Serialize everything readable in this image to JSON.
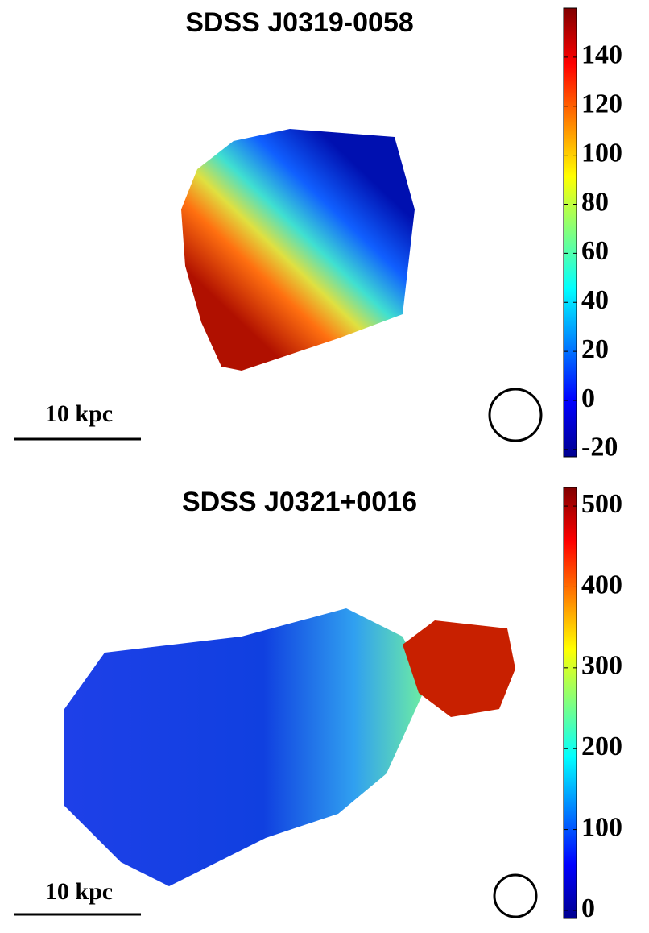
{
  "chart_data": [
    {
      "type": "colormap",
      "title": "SDSS J0319-0058",
      "colormap": "jet",
      "clim": [
        -23,
        160
      ],
      "cticks": [
        -20,
        0,
        20,
        40,
        60,
        80,
        100,
        120,
        140
      ],
      "scale_label": "10 kpc"
    },
    {
      "type": "colormap",
      "title": "SDSS J0321+0016",
      "colormap": "jet",
      "clim": [
        -10,
        523
      ],
      "cticks": [
        0,
        100,
        200,
        300,
        400,
        500
      ],
      "scale_label": "10 kpc"
    }
  ]
}
